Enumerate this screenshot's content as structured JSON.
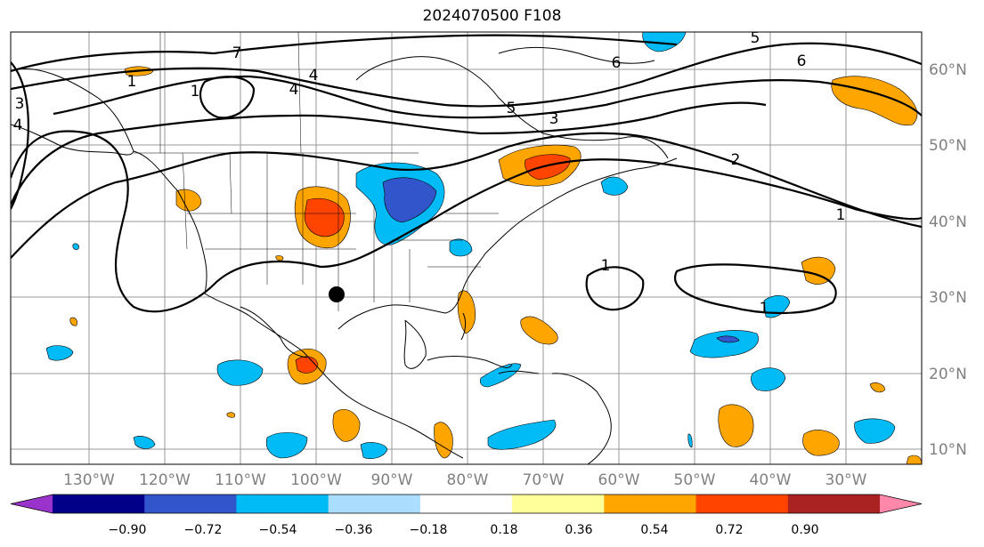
{
  "title": "2024070500 F108",
  "map": {
    "lat_labels": [
      "60°N",
      "50°N",
      "40°N",
      "30°N",
      "20°N",
      "10°N"
    ],
    "lon_labels": [
      "130°W",
      "120°W",
      "110°W",
      "100°W",
      "90°W",
      "80°W",
      "70°W",
      "60°W",
      "50°W",
      "40°W",
      "30°W"
    ],
    "contour_labels": [
      "1",
      "1",
      "1",
      "1",
      "1",
      "2",
      "3",
      "3",
      "4",
      "4",
      "4",
      "5",
      "6",
      "6",
      "7",
      "5"
    ],
    "marker": "black dot over Texas"
  },
  "colorbar": {
    "colors": [
      "#9933cc",
      "#000088",
      "#3355cc",
      "#00bbf5",
      "#aaddff",
      "#ffffff",
      "#ffff99",
      "#ffa500",
      "#ff4400",
      "#aa2222",
      "#ff88aa"
    ],
    "tick_labels": [
      "−0.90",
      "−0.72",
      "−0.54",
      "−0.36",
      "−0.18",
      "0.18",
      "0.36",
      "0.54",
      "0.72",
      "0.90"
    ]
  }
}
